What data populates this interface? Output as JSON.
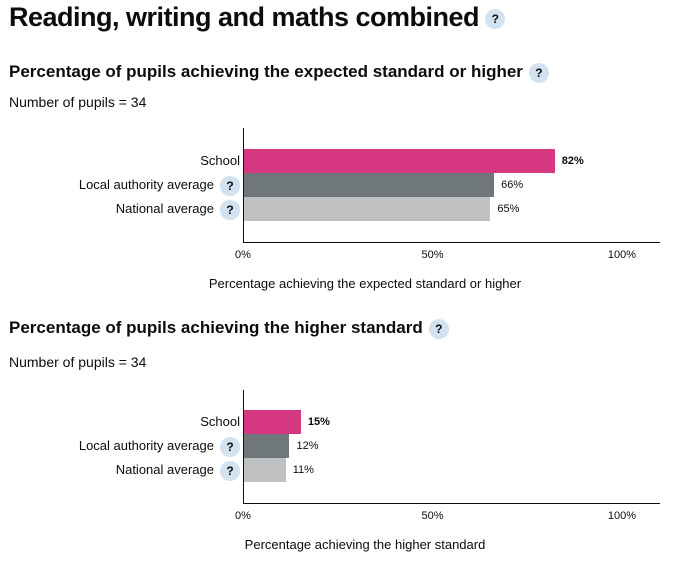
{
  "page_title": "Reading, writing and maths combined",
  "help_symbol": "?",
  "colors": {
    "school": "#d53880",
    "local_authority": "#6f777b",
    "national": "#bfc1c3",
    "help_bg": "#d2e2f1"
  },
  "chart_data": [
    {
      "type": "bar",
      "orientation": "horizontal",
      "title": "Percentage of pupils achieving the expected standard or higher",
      "subtitle": "Number of pupils = 34",
      "categories": [
        "School",
        "Local authority average",
        "National average"
      ],
      "values": [
        82,
        66,
        65
      ],
      "value_labels": [
        "82%",
        "66%",
        "65%"
      ],
      "xlabel": "Percentage achieving the expected standard or higher",
      "xticks": [
        "0%",
        "50%",
        "100%"
      ],
      "xlim": [
        0,
        100
      ]
    },
    {
      "type": "bar",
      "orientation": "horizontal",
      "title": "Percentage of pupils achieving the higher standard",
      "subtitle": "Number of pupils = 34",
      "categories": [
        "School",
        "Local authority average",
        "National average"
      ],
      "values": [
        15,
        12,
        11
      ],
      "value_labels": [
        "15%",
        "12%",
        "11%"
      ],
      "xlabel": "Percentage achieving the higher standard",
      "xticks": [
        "0%",
        "50%",
        "100%"
      ],
      "xlim": [
        0,
        100
      ]
    }
  ]
}
